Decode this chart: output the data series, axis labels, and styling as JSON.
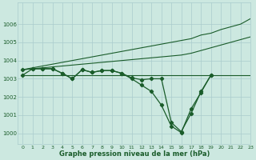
{
  "title": "Graphe pression niveau de la mer (hPa)",
  "bg_color": "#cce8e0",
  "grid_color": "#aacccc",
  "line_color": "#1a5c2a",
  "xlim": [
    -0.5,
    23
  ],
  "ylim": [
    999.4,
    1007.2
  ],
  "yticks": [
    1000,
    1001,
    1002,
    1003,
    1004,
    1005,
    1006
  ],
  "xticks": [
    0,
    1,
    2,
    3,
    4,
    5,
    6,
    7,
    8,
    9,
    10,
    11,
    12,
    13,
    14,
    15,
    16,
    17,
    18,
    19,
    20,
    21,
    22,
    23
  ],
  "hours": [
    0,
    1,
    2,
    3,
    4,
    5,
    6,
    7,
    8,
    9,
    10,
    11,
    12,
    13,
    14,
    15,
    16,
    17,
    18,
    19,
    20,
    21,
    22,
    23
  ],
  "line_flat": [
    1003.2,
    1003.2,
    1003.2,
    1003.2,
    1003.2,
    1003.2,
    1003.2,
    1003.2,
    1003.2,
    1003.2,
    1003.2,
    1003.2,
    1003.2,
    1003.2,
    1003.2,
    1003.2,
    1003.2,
    1003.2,
    1003.2,
    1003.2,
    1003.2,
    1003.2,
    1003.2,
    1003.2
  ],
  "line_rise1": [
    1003.5,
    1003.55,
    1003.6,
    1003.65,
    1003.7,
    1003.75,
    1003.8,
    1003.85,
    1003.9,
    1003.95,
    1004.0,
    1004.05,
    1004.1,
    1004.15,
    1004.2,
    1004.25,
    1004.3,
    1004.4,
    1004.55,
    1004.7,
    1004.85,
    1005.0,
    1005.15,
    1005.3
  ],
  "line_rise2": [
    1003.5,
    1003.6,
    1003.7,
    1003.8,
    1003.9,
    1004.0,
    1004.1,
    1004.2,
    1004.3,
    1004.4,
    1004.5,
    1004.6,
    1004.7,
    1004.8,
    1004.9,
    1005.0,
    1005.1,
    1005.2,
    1005.4,
    1005.5,
    1005.7,
    1005.85,
    1006.0,
    1006.3
  ],
  "line_dip": [
    1003.5,
    1003.55,
    1003.55,
    1003.55,
    1003.3,
    1003.0,
    1003.5,
    1003.35,
    1003.45,
    1003.45,
    1003.3,
    1003.05,
    1002.95,
    1003.0,
    1003.0,
    1000.6,
    1000.1,
    1001.1,
    1002.3,
    1003.2,
    null,
    null,
    null,
    null
  ],
  "line_dip2": [
    1003.2,
    1003.55,
    1003.55,
    1003.55,
    1003.3,
    1003.0,
    1003.5,
    1003.35,
    1003.45,
    1003.45,
    1003.3,
    1003.0,
    1002.65,
    1002.3,
    1001.55,
    1000.4,
    1000.05,
    1001.35,
    1002.25,
    1003.2,
    null,
    null,
    null,
    null
  ]
}
